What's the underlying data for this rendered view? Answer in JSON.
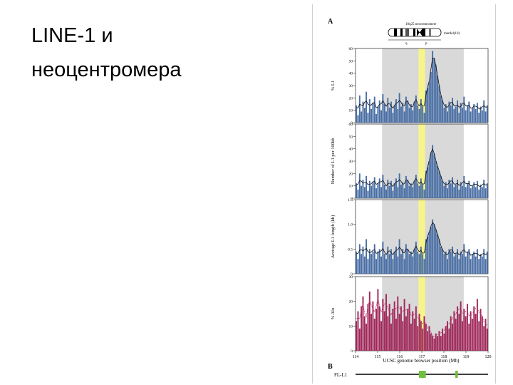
{
  "slide": {
    "title_line1": "LINE-1 и",
    "title_line2": "неоцентромера"
  },
  "figure": {
    "panel_a_letter": "A",
    "panel_b_letter": "B",
    "ideogram_label_top": "10q25 neocentromere",
    "ideogram_label_right": "mardel(10)",
    "ideogram_arm_q": "q",
    "ideogram_arm_p": "p",
    "xlabel": "UCSC genome browser position (Mb)",
    "fl_l1_label": "FL-L1",
    "colors": {
      "l1_bars": "#4a6fa5",
      "alu_bars": "#a0285a",
      "shaded_region": "#d9d9d9",
      "neocentromere_highlight": "#f7f48a",
      "fl_l1_marks": "#6fbf3a"
    }
  },
  "chart_data": [
    {
      "type": "bar",
      "ylabel": "% L1",
      "ylim": [
        0,
        60
      ],
      "yticks": [
        "0",
        "10",
        "20",
        "30",
        "40",
        "50",
        "60"
      ],
      "x_range": [
        114,
        120
      ],
      "shaded_region": [
        115.2,
        118.9
      ],
      "highlight_region": [
        116.85,
        117.15
      ],
      "series": [
        {
          "values": [
            14,
            6,
            22,
            9,
            17,
            12,
            25,
            8,
            19,
            11,
            16,
            21,
            7,
            13,
            18,
            10,
            23,
            15,
            9,
            20,
            12,
            17,
            8,
            14,
            19,
            11,
            24,
            13,
            16,
            9,
            21,
            18,
            12,
            15,
            10,
            17,
            22,
            14,
            11,
            19,
            13,
            8,
            26,
            28,
            33,
            41,
            58,
            52,
            47,
            38,
            30,
            22,
            18,
            12,
            15,
            9,
            17,
            14,
            20,
            11,
            13,
            18,
            8,
            16,
            12,
            21,
            10,
            14,
            17,
            9,
            12,
            15,
            11,
            16,
            8,
            13,
            10,
            18,
            9,
            14
          ]
        }
      ]
    },
    {
      "type": "bar",
      "ylabel": "Number of L1 per 100kb",
      "ylim": [
        0,
        60
      ],
      "yticks": [
        "0",
        "10",
        "20",
        "30",
        "40",
        "50",
        "60"
      ],
      "x_range": [
        114,
        120
      ],
      "shaded_region": [
        115.2,
        118.9
      ],
      "highlight_region": [
        116.85,
        117.15
      ],
      "series": [
        {
          "values": [
            12,
            7,
            20,
            10,
            15,
            9,
            18,
            6,
            14,
            10,
            13,
            17,
            8,
            12,
            16,
            9,
            19,
            11,
            7,
            15,
            10,
            14,
            6,
            12,
            16,
            9,
            20,
            11,
            13,
            8,
            18,
            15,
            10,
            12,
            9,
            14,
            19,
            12,
            10,
            16,
            11,
            7,
            22,
            25,
            30,
            37,
            43,
            36,
            30,
            26,
            22,
            18,
            14,
            10,
            13,
            8,
            15,
            12,
            17,
            9,
            11,
            15,
            7,
            13,
            10,
            18,
            9,
            12,
            14,
            8,
            10,
            13,
            9,
            14,
            7,
            11,
            9,
            15,
            8,
            12
          ]
        }
      ]
    },
    {
      "type": "bar",
      "ylabel": "Average L1 length (kb)",
      "ylim": [
        0,
        1.5
      ],
      "yticks": [
        "0",
        "0.5",
        "1.0",
        "1.5"
      ],
      "x_range": [
        114,
        120
      ],
      "shaded_region": [
        115.2,
        118.9
      ],
      "highlight_region": [
        116.85,
        117.15
      ],
      "series": [
        {
          "values": [
            0.45,
            0.3,
            0.6,
            0.4,
            0.55,
            0.35,
            0.7,
            0.3,
            0.5,
            0.4,
            0.45,
            0.6,
            0.3,
            0.45,
            0.5,
            0.35,
            0.65,
            0.4,
            0.3,
            0.55,
            0.4,
            0.5,
            0.3,
            0.45,
            0.55,
            0.35,
            0.7,
            0.4,
            0.5,
            0.3,
            0.6,
            0.5,
            0.4,
            0.45,
            0.35,
            0.5,
            0.65,
            0.45,
            0.4,
            0.55,
            0.4,
            0.3,
            0.7,
            0.75,
            0.85,
            0.95,
            1.1,
            1.0,
            0.9,
            0.8,
            0.7,
            0.55,
            0.5,
            0.4,
            0.45,
            0.3,
            0.5,
            0.45,
            0.55,
            0.35,
            0.4,
            0.5,
            0.3,
            0.45,
            0.4,
            0.6,
            0.35,
            0.45,
            0.5,
            0.3,
            0.4,
            0.45,
            0.35,
            0.5,
            0.3,
            0.4,
            0.35,
            0.5,
            0.3,
            0.45
          ]
        }
      ]
    },
    {
      "type": "bar",
      "ylabel": "% Alu",
      "ylim": [
        0,
        30
      ],
      "yticks": [
        "0",
        "10",
        "20",
        "30"
      ],
      "xticks": [
        "114",
        "115",
        "116",
        "117",
        "118",
        "119",
        "120"
      ],
      "x_range": [
        114,
        120
      ],
      "shaded_region": [
        115.2,
        118.9
      ],
      "highlight_region": [
        116.85,
        117.15
      ],
      "series": [
        {
          "values": [
            12,
            16,
            9,
            18,
            22,
            14,
            11,
            19,
            24,
            15,
            20,
            13,
            17,
            25,
            18,
            12,
            21,
            16,
            23,
            14,
            19,
            11,
            17,
            20,
            13,
            22,
            15,
            18,
            12,
            21,
            14,
            17,
            19,
            11,
            16,
            13,
            18,
            10,
            15,
            12,
            9,
            14,
            11,
            8,
            10,
            7,
            6,
            5,
            7,
            6,
            8,
            6,
            9,
            7,
            10,
            12,
            9,
            14,
            11,
            16,
            13,
            18,
            15,
            20,
            12,
            17,
            14,
            19,
            11,
            16,
            13,
            18,
            15,
            21,
            12,
            17,
            14,
            10,
            13,
            9
          ]
        }
      ]
    }
  ],
  "fl_l1_positions": [
    116.9,
    116.97,
    117.03,
    117.09,
    117.15,
    118.55,
    118.6
  ]
}
